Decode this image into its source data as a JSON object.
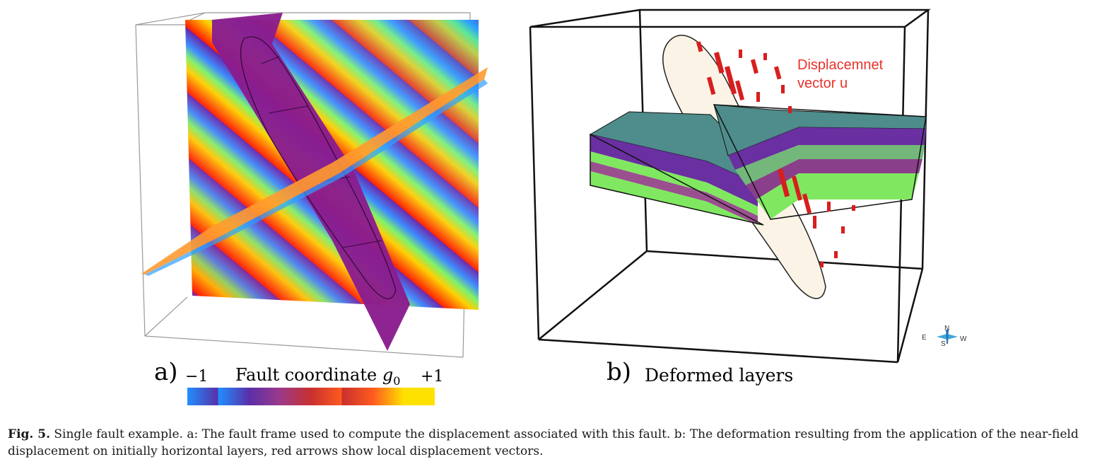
{
  "panel_a": {
    "letter": "a)",
    "colorbar_min": "−1",
    "colorbar_max": "+1",
    "colorbar_title_text": "Fault coordinate ",
    "colorbar_title_var": "g",
    "colorbar_title_sub": "0",
    "colorbar_colors": [
      "#1f8fff",
      "#5b2fa8",
      "#9b3a8a",
      "#c8302e",
      "#ff5a1f",
      "#ffe100"
    ]
  },
  "panel_b": {
    "letter": "b)",
    "title": "Deformed layers",
    "annotation_line1": "Displacemnet",
    "annotation_line2": "vector u",
    "compass": {
      "n": "N",
      "s": "S",
      "e": "E",
      "w": "W"
    },
    "layer_colors": {
      "top": "#4f8c8c",
      "purple": "#6a2fa0",
      "green": "#7fe860",
      "mid_green": "#73b87a"
    }
  },
  "caption": {
    "label": "Fig. 5.",
    "text": " Single fault example. a: The fault frame used to compute the displacement associated with this fault. b: The deformation resulting from the application of the near-field displacement on initially horizontal layers, red arrows show local displacement vectors."
  }
}
